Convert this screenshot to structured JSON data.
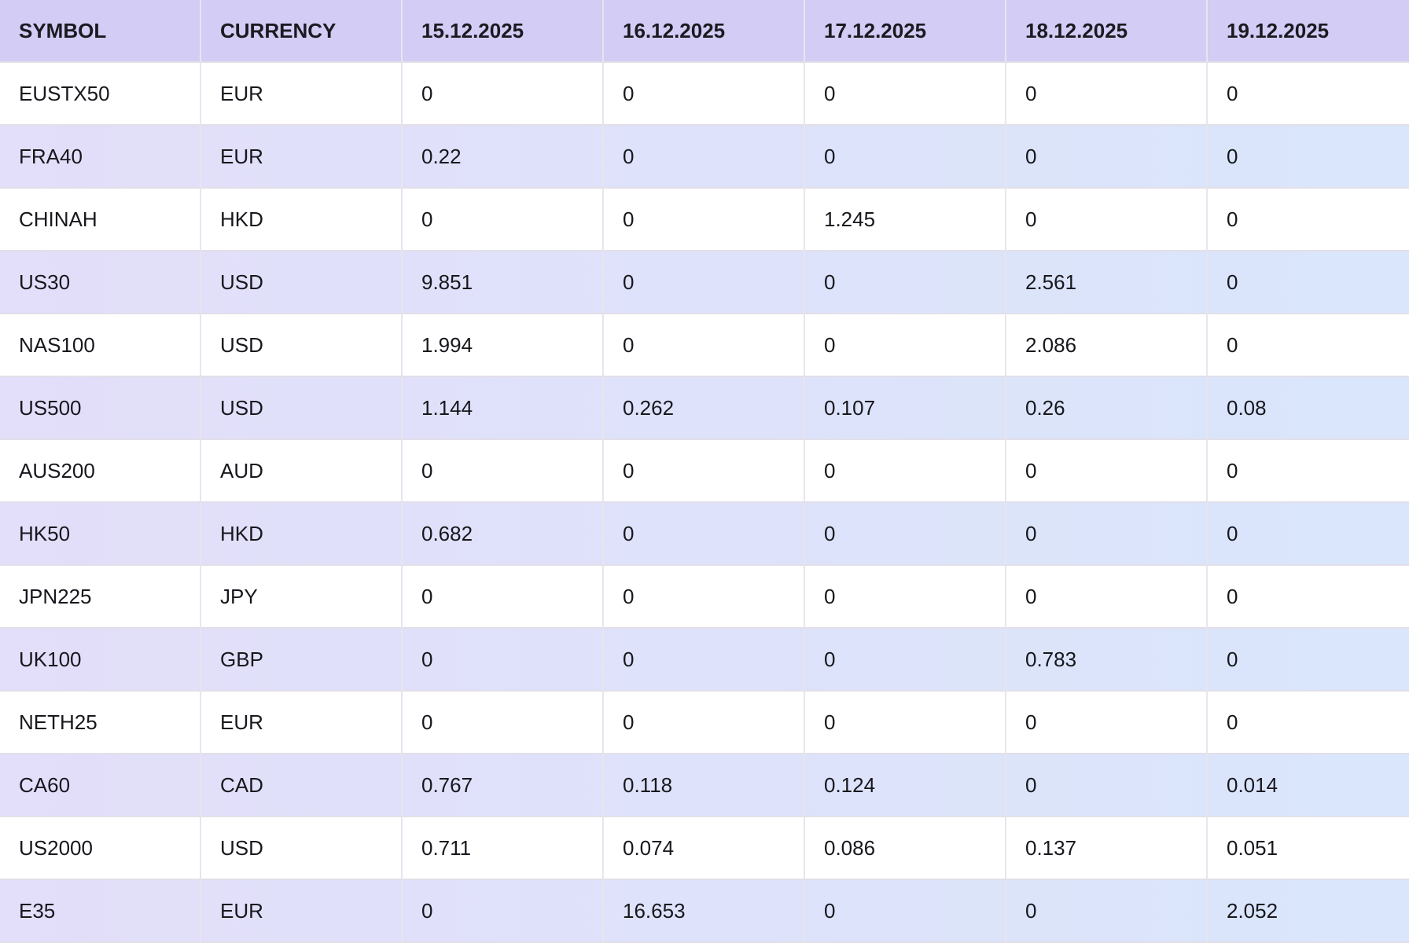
{
  "table": {
    "headers": [
      "SYMBOL",
      "CURRENCY",
      "15.12.2025",
      "16.12.2025",
      "17.12.2025",
      "18.12.2025",
      "19.12.2025"
    ],
    "rows": [
      {
        "symbol": "EUSTX50",
        "currency": "EUR",
        "values": [
          "0",
          "0",
          "0",
          "0",
          "0"
        ]
      },
      {
        "symbol": "FRA40",
        "currency": "EUR",
        "values": [
          "0.22",
          "0",
          "0",
          "0",
          "0"
        ]
      },
      {
        "symbol": "CHINAH",
        "currency": "HKD",
        "values": [
          "0",
          "0",
          "1.245",
          "0",
          "0"
        ]
      },
      {
        "symbol": "US30",
        "currency": "USD",
        "values": [
          "9.851",
          "0",
          "0",
          "2.561",
          "0"
        ]
      },
      {
        "symbol": "NAS100",
        "currency": "USD",
        "values": [
          "1.994",
          "0",
          "0",
          "2.086",
          "0"
        ]
      },
      {
        "symbol": "US500",
        "currency": "USD",
        "values": [
          "1.144",
          "0.262",
          "0.107",
          "0.26",
          "0.08"
        ]
      },
      {
        "symbol": "AUS200",
        "currency": "AUD",
        "values": [
          "0",
          "0",
          "0",
          "0",
          "0"
        ]
      },
      {
        "symbol": "HK50",
        "currency": "HKD",
        "values": [
          "0.682",
          "0",
          "0",
          "0",
          "0"
        ]
      },
      {
        "symbol": "JPN225",
        "currency": "JPY",
        "values": [
          "0",
          "0",
          "0",
          "0",
          "0"
        ]
      },
      {
        "symbol": "UK100",
        "currency": "GBP",
        "values": [
          "0",
          "0",
          "0",
          "0.783",
          "0"
        ]
      },
      {
        "symbol": "NETH25",
        "currency": "EUR",
        "values": [
          "0",
          "0",
          "0",
          "0",
          "0"
        ]
      },
      {
        "symbol": "CA60",
        "currency": "CAD",
        "values": [
          "0.767",
          "0.118",
          "0.124",
          "0",
          "0.014"
        ]
      },
      {
        "symbol": "US2000",
        "currency": "USD",
        "values": [
          "0.711",
          "0.074",
          "0.086",
          "0.137",
          "0.051"
        ]
      },
      {
        "symbol": "E35",
        "currency": "EUR",
        "values": [
          "0",
          "16.653",
          "0",
          "0",
          "2.052"
        ]
      }
    ]
  },
  "colors": {
    "header_bg": "#d3ccf4",
    "header_text": "#1a1a20",
    "header_separator": "#dcd5f6",
    "row_bg": "#ffffff",
    "stripe_left": "#e3def9",
    "stripe_right": "#d9e6fb",
    "cell_text": "#17171d",
    "border_vertical": "#e7e5ee",
    "border_horizontal": "#e2dfe8"
  }
}
